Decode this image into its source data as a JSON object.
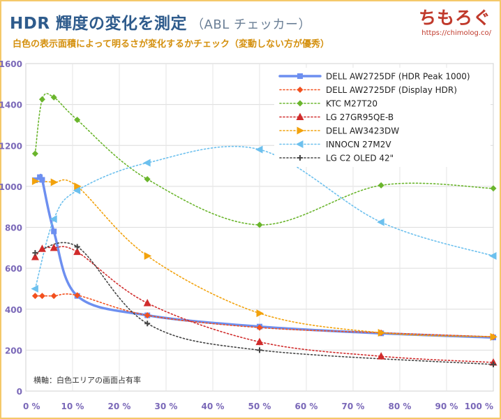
{
  "header": {
    "title": "HDR 輝度の変化を測定",
    "title_sub": "（ABL チェッカー）",
    "subtitle": "白色の表示面積によって明るさが変化するかチェック（変動しない方が優秀）",
    "logo": "ちもろぐ",
    "logo_url": "https://chimolog.co/"
  },
  "chart_data": {
    "type": "line",
    "title": "HDR 輝度の変化を測定",
    "xlabel": "",
    "ylabel": "",
    "annotation": "横軸：白色エリアの画面占有率",
    "xlim": [
      0,
      100
    ],
    "ylim": [
      0,
      1600
    ],
    "x_ticks": [
      "0 %",
      "10 %",
      "20 %",
      "30 %",
      "40 %",
      "50 %",
      "60 %",
      "70 %",
      "80 %",
      "90 %",
      "100 %"
    ],
    "y_ticks": [
      "0",
      "200",
      "400",
      "600",
      "800",
      "1000",
      "1200",
      "1400",
      "1600"
    ],
    "grid": true,
    "legend_position": "top-right",
    "series": [
      {
        "name": "DELL AW2725DF (HDR Peak 1000)",
        "color": "#6d8ff0",
        "marker": "square",
        "style": "solid",
        "points": [
          [
            2,
            1030
          ],
          [
            3,
            1045
          ],
          [
            3.5,
            1032
          ],
          [
            6,
            780
          ],
          [
            11,
            465
          ],
          [
            26,
            370
          ],
          [
            50,
            315
          ],
          [
            76,
            282
          ],
          [
            100,
            262
          ]
        ]
      },
      {
        "name": "DELL AW2725DF (Display HDR)",
        "color": "#f2501e",
        "marker": "diamond",
        "style": "dotted",
        "points": [
          [
            2,
            465
          ],
          [
            3.5,
            465
          ],
          [
            6,
            465
          ],
          [
            11,
            468
          ],
          [
            26,
            370
          ],
          [
            50,
            310
          ],
          [
            76,
            285
          ],
          [
            100,
            265
          ]
        ]
      },
      {
        "name": "KTC M27T20",
        "color": "#6ab52c",
        "marker": "diamond",
        "style": "dotted",
        "points": [
          [
            2,
            1160
          ],
          [
            3.5,
            1425
          ],
          [
            6,
            1435
          ],
          [
            11,
            1325
          ],
          [
            26,
            1035
          ],
          [
            50,
            812
          ],
          [
            76,
            1005
          ],
          [
            100,
            990
          ]
        ]
      },
      {
        "name": "LG 27GR95QE-B",
        "color": "#d02b2b",
        "marker": "triangle",
        "style": "dotted",
        "points": [
          [
            2,
            655
          ],
          [
            3.5,
            695
          ],
          [
            6,
            700
          ],
          [
            11,
            680
          ],
          [
            26,
            430
          ],
          [
            50,
            240
          ],
          [
            76,
            170
          ],
          [
            100,
            140
          ]
        ]
      },
      {
        "name": "DELL AW3423DW",
        "color": "#f2a20c",
        "marker": "triangle-right",
        "style": "dotted",
        "points": [
          [
            2,
            1025
          ],
          [
            6,
            1020
          ],
          [
            11,
            1000
          ],
          [
            26,
            660
          ],
          [
            50,
            380
          ],
          [
            76,
            285
          ],
          [
            100,
            265
          ]
        ]
      },
      {
        "name": "INNOCN 27M2V",
        "color": "#6cc0ee",
        "marker": "triangle-left",
        "style": "dotted",
        "points": [
          [
            2,
            500
          ],
          [
            6,
            840
          ],
          [
            11,
            980
          ],
          [
            26,
            1115
          ],
          [
            50,
            1180
          ],
          [
            76,
            825
          ],
          [
            100,
            660
          ]
        ]
      },
      {
        "name": "LG C2 OLED 42\"",
        "color": "#444444",
        "marker": "plus",
        "style": "dotted",
        "points": [
          [
            2,
            675
          ],
          [
            11,
            705
          ],
          [
            26,
            330
          ],
          [
            50,
            200
          ],
          [
            100,
            130
          ]
        ]
      }
    ]
  }
}
